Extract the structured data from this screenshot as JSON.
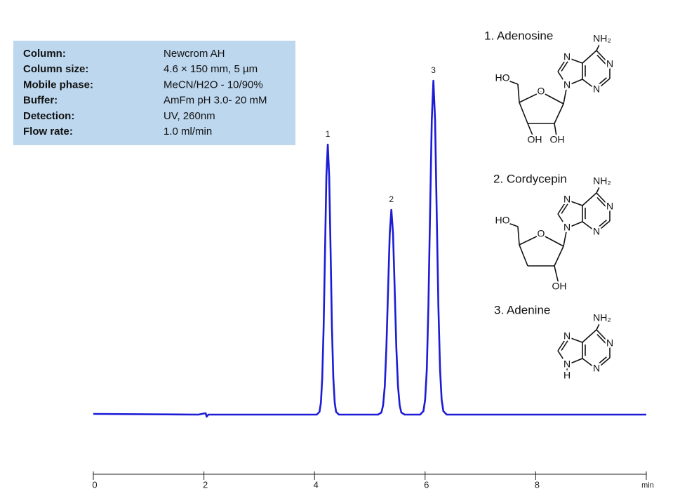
{
  "chart_data": {
    "type": "line",
    "x_label": "min",
    "x": [
      0,
      1.9,
      2.03,
      2.05,
      2.08,
      4.04,
      4.09,
      4.115,
      4.14,
      4.165,
      4.19,
      4.215,
      4.24,
      4.265,
      4.29,
      4.315,
      4.34,
      4.365,
      4.39,
      4.44,
      5.15,
      5.21,
      5.24,
      5.27,
      5.3,
      5.33,
      5.36,
      5.39,
      5.42,
      5.45,
      5.48,
      5.51,
      5.54,
      5.57,
      5.63,
      5.91,
      5.97,
      6.0,
      6.03,
      6.06,
      6.09,
      6.12,
      6.15,
      6.18,
      6.21,
      6.24,
      6.27,
      6.3,
      6.33,
      6.39,
      10
    ],
    "values": [
      1,
      0,
      2,
      -3,
      0,
      0,
      4,
      17,
      52,
      125,
      234,
      340,
      385,
      340,
      234,
      125,
      52,
      17,
      4,
      0,
      0,
      3,
      13,
      40,
      95,
      177,
      258,
      292,
      258,
      177,
      95,
      40,
      13,
      3,
      0,
      0,
      5,
      21,
      64,
      155,
      289,
      420,
      476,
      420,
      289,
      155,
      64,
      21,
      5,
      0,
      0
    ],
    "color": "#1c1cd6",
    "xlim": [
      0,
      10
    ],
    "xticks": [
      0,
      2,
      4,
      6,
      8
    ],
    "ylim": [
      0,
      500
    ],
    "annotations": [
      {
        "text": "1",
        "x": 4.24,
        "y": 385
      },
      {
        "text": "2",
        "x": 5.39,
        "y": 292
      },
      {
        "text": "3",
        "x": 6.15,
        "y": 476
      }
    ]
  },
  "conditions": {
    "rows": [
      [
        "Column:",
        "Newcrom AH"
      ],
      [
        "Column size:",
        "4.6 × 150 mm, 5 µm"
      ],
      [
        "Mobile phase:",
        "MeCN/H2O  - 10/90%"
      ],
      [
        "Buffer:",
        "AmFm pH 3.0- 20 mM"
      ],
      [
        "Detection:",
        "UV, 260nm"
      ],
      [
        "Flow rate:",
        "1.0 ml/min"
      ]
    ]
  },
  "compounds": [
    {
      "name": "1. Adenosine",
      "atoms": [
        "NH₂",
        "N",
        "N",
        "N",
        "N",
        "HO",
        "O",
        "OH",
        "OH"
      ]
    },
    {
      "name": "2. Cordycepin",
      "atoms": [
        "NH₂",
        "N",
        "N",
        "N",
        "N",
        "HO",
        "O",
        "OH"
      ]
    },
    {
      "name": "3. Adenine",
      "atoms": [
        "NH₂",
        "N",
        "N",
        "N",
        "N",
        "H"
      ]
    }
  ]
}
